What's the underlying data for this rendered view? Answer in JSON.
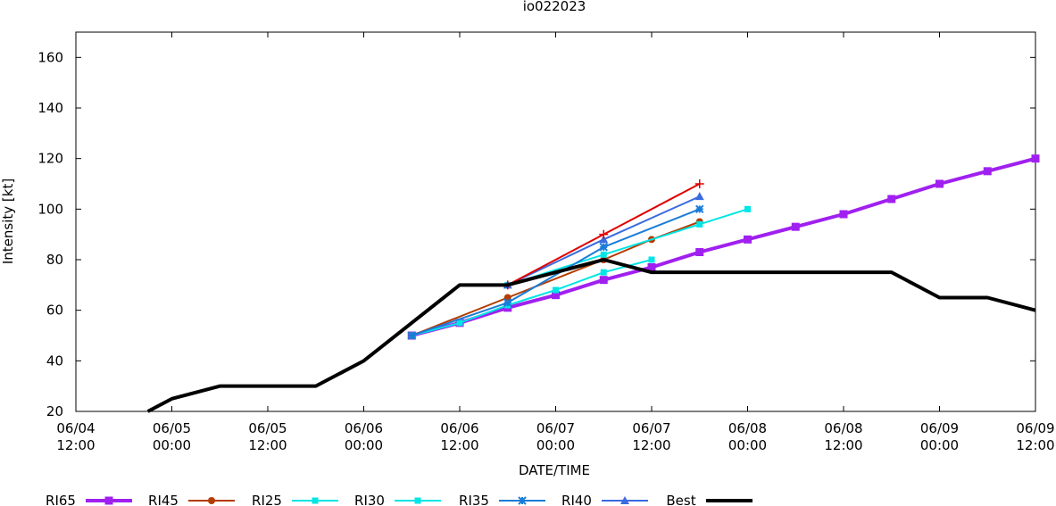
{
  "chart_data": {
    "type": "line",
    "title": "io022023",
    "xlabel": "DATE/TIME",
    "ylabel": "Intensity [kt]",
    "x_unit": "hours",
    "xlim": [
      -36,
      84
    ],
    "ylim": [
      20,
      170
    ],
    "x_ticks": [
      {
        "x": -36,
        "date": "06/04",
        "time": "12:00"
      },
      {
        "x": -24,
        "date": "06/05",
        "time": "00:00"
      },
      {
        "x": -12,
        "date": "06/05",
        "time": "12:00"
      },
      {
        "x": 0,
        "date": "06/06",
        "time": "00:00"
      },
      {
        "x": 12,
        "date": "06/06",
        "time": "12:00"
      },
      {
        "x": 24,
        "date": "06/07",
        "time": "00:00"
      },
      {
        "x": 36,
        "date": "06/07",
        "time": "12:00"
      },
      {
        "x": 48,
        "date": "06/08",
        "time": "00:00"
      },
      {
        "x": 60,
        "date": "06/08",
        "time": "12:00"
      },
      {
        "x": 72,
        "date": "06/09",
        "time": "00:00"
      },
      {
        "x": 84,
        "date": "06/09",
        "time": "12:00"
      }
    ],
    "y_ticks": [
      20,
      40,
      60,
      80,
      100,
      120,
      140,
      160
    ],
    "legend_position": "bottom",
    "series": [
      {
        "name": "RI65",
        "color": "#a020f0",
        "marker": "square",
        "width": 4,
        "points": [
          [
            6,
            50
          ],
          [
            12,
            55
          ],
          [
            18,
            61
          ],
          [
            24,
            66
          ],
          [
            30,
            72
          ],
          [
            36,
            77
          ],
          [
            42,
            83
          ],
          [
            48,
            88
          ],
          [
            54,
            93
          ],
          [
            60,
            98
          ],
          [
            66,
            104
          ],
          [
            72,
            110
          ],
          [
            78,
            115
          ],
          [
            84,
            120
          ]
        ]
      },
      {
        "name": "RI45",
        "color": "#b43c00",
        "marker": "circle",
        "width": 2,
        "points": [
          [
            6,
            50
          ],
          [
            18,
            65
          ],
          [
            30,
            80
          ],
          [
            36,
            88
          ],
          [
            42,
            95
          ]
        ]
      },
      {
        "name": "RI25",
        "color": "#00e5e5",
        "marker": "filled-square",
        "width": 2,
        "points": [
          [
            6,
            50
          ],
          [
            12,
            55
          ],
          [
            18,
            62
          ],
          [
            24,
            68
          ],
          [
            30,
            75
          ],
          [
            36,
            80
          ]
        ]
      },
      {
        "name": "RI30",
        "color": "#00e5e5",
        "marker": "filled-square",
        "width": 2,
        "points": [
          [
            18,
            70
          ],
          [
            30,
            82
          ],
          [
            42,
            94
          ],
          [
            48,
            100
          ]
        ]
      },
      {
        "name": "RI35",
        "color": "#1a7cd8",
        "marker": "x",
        "width": 2,
        "points": [
          [
            6,
            50
          ],
          [
            18,
            63
          ],
          [
            30,
            85
          ],
          [
            42,
            100
          ]
        ]
      },
      {
        "name": "RI40",
        "color": "#3a6be0",
        "marker": "triangle",
        "width": 2,
        "points": [
          [
            18,
            70
          ],
          [
            30,
            88
          ],
          [
            42,
            105
          ]
        ]
      },
      {
        "name": "Best",
        "color": "#e00000",
        "marker": "plus",
        "width": 2,
        "points": [
          [
            18,
            70
          ],
          [
            30,
            90
          ],
          [
            42,
            110
          ]
        ]
      },
      {
        "name": "",
        "color": "#000000",
        "marker": "none",
        "width": 4,
        "points": [
          [
            -27,
            20
          ],
          [
            -24,
            25
          ],
          [
            -18,
            30
          ],
          [
            -6,
            30
          ],
          [
            0,
            40
          ],
          [
            6,
            55
          ],
          [
            12,
            70
          ],
          [
            18,
            70
          ],
          [
            30,
            80
          ],
          [
            36,
            75
          ],
          [
            66,
            75
          ],
          [
            72,
            65
          ],
          [
            78,
            65
          ],
          [
            84,
            60
          ]
        ]
      }
    ]
  }
}
